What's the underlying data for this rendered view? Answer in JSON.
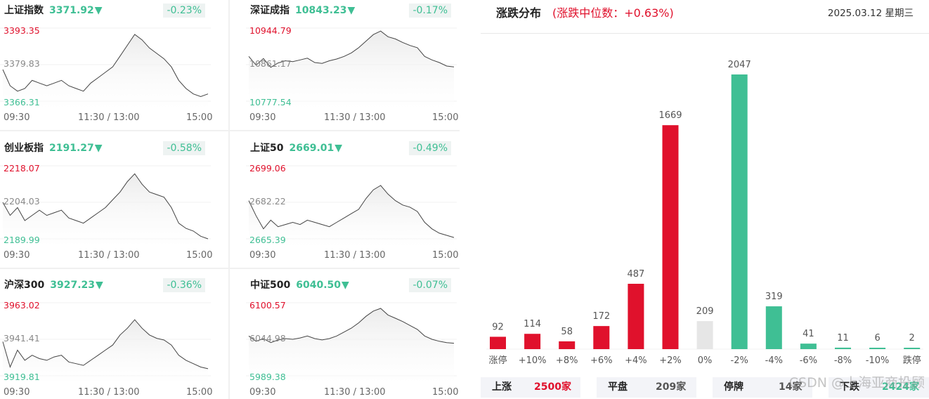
{
  "colors": {
    "up": "#e0112c",
    "down": "#3fbf94",
    "flat": "#e6e6e6",
    "ref": "#8a8a8a"
  },
  "indices": [
    {
      "name": "上证指数",
      "value": "3371.92",
      "arrow": "▼",
      "change": "-0.23%",
      "high": "3393.35",
      "mid": "3379.83",
      "low": "3366.31",
      "times": [
        "09:30",
        "11:30 / 13:00",
        "15:00"
      ],
      "series": [
        3378,
        3372,
        3370,
        3371,
        3374,
        3373,
        3372,
        3373,
        3374,
        3372,
        3371,
        3370,
        3373,
        3375,
        3377,
        3379,
        3383,
        3387,
        3391,
        3389,
        3386,
        3384,
        3382,
        3379,
        3374,
        3371,
        3369,
        3368,
        3369
      ]
    },
    {
      "name": "深证成指",
      "value": "10843.23",
      "arrow": "▼",
      "change": "-0.17%",
      "high": "10944.79",
      "mid": "10861.17",
      "low": "10777.54",
      "times": [
        "09:30",
        "11:30 / 13:00",
        "15:00"
      ],
      "series": [
        10880,
        10860,
        10875,
        10855,
        10865,
        10870,
        10868,
        10872,
        10876,
        10866,
        10864,
        10870,
        10874,
        10880,
        10888,
        10900,
        10915,
        10930,
        10938,
        10925,
        10920,
        10912,
        10905,
        10900,
        10880,
        10872,
        10866,
        10858,
        10856
      ]
    },
    {
      "name": "创业板指",
      "value": "2191.27",
      "arrow": "▼",
      "change": "-0.58%",
      "high": "2218.07",
      "mid": "2204.03",
      "low": "2189.99",
      "times": [
        "09:30",
        "11:30 / 13:00",
        "15:00"
      ],
      "series": [
        2204,
        2199,
        2202,
        2197,
        2199,
        2201,
        2199,
        2200,
        2201,
        2198,
        2197,
        2196,
        2198,
        2200,
        2202,
        2205,
        2208,
        2212,
        2215,
        2211,
        2208,
        2207,
        2206,
        2202,
        2196,
        2194,
        2193,
        2191,
        2190
      ]
    },
    {
      "name": "上证50",
      "value": "2669.01",
      "arrow": "▼",
      "change": "-0.49%",
      "high": "2699.06",
      "mid": "2682.22",
      "low": "2665.39",
      "times": [
        "09:30",
        "11:30 / 13:00",
        "15:00"
      ],
      "series": [
        2683,
        2676,
        2670,
        2674,
        2671,
        2672,
        2673,
        2672,
        2674,
        2673,
        2672,
        2671,
        2673,
        2675,
        2677,
        2679,
        2684,
        2688,
        2690,
        2686,
        2683,
        2681,
        2680,
        2678,
        2673,
        2670,
        2668,
        2667,
        2666
      ]
    },
    {
      "name": "沪深300",
      "value": "3927.23",
      "arrow": "▼",
      "change": "-0.36%",
      "high": "3963.02",
      "mid": "3941.41",
      "low": "3919.81",
      "times": [
        "09:30",
        "11:30 / 13:00",
        "15:00"
      ],
      "series": [
        3940,
        3925,
        3935,
        3929,
        3932,
        3930,
        3929,
        3931,
        3932,
        3928,
        3927,
        3926,
        3929,
        3932,
        3935,
        3938,
        3944,
        3948,
        3953,
        3948,
        3944,
        3942,
        3941,
        3938,
        3932,
        3929,
        3927,
        3925,
        3924
      ]
    },
    {
      "name": "中证500",
      "value": "6040.50",
      "arrow": "▼",
      "change": "-0.07%",
      "high": "6100.57",
      "mid": "6044.98",
      "low": "5989.38",
      "times": [
        "09:30",
        "11:30 / 13:00",
        "15:00"
      ],
      "series": [
        6050,
        6042,
        6046,
        6040,
        6044,
        6046,
        6045,
        6047,
        6050,
        6046,
        6044,
        6046,
        6050,
        6056,
        6062,
        6070,
        6080,
        6088,
        6092,
        6082,
        6077,
        6072,
        6066,
        6060,
        6050,
        6045,
        6042,
        6040,
        6039
      ]
    }
  ],
  "distribution": {
    "title": "涨跌分布",
    "subtitle": "(涨跌中位数：+0.63%)",
    "date": "2025.03.12 星期三",
    "stats": [
      {
        "label": "上涨",
        "value": "2500家"
      },
      {
        "label": "平盘",
        "value": "209家"
      },
      {
        "label": "停牌",
        "value": "14家"
      },
      {
        "label": "下跌",
        "value": "2424家"
      }
    ],
    "watermark": "CSDN @上海亚商投顾"
  },
  "chart_data": {
    "type": "bar",
    "categories": [
      "涨停",
      "+10%",
      "+8%",
      "+6%",
      "+4%",
      "+2%",
      "0%",
      "-2%",
      "-4%",
      "-6%",
      "-8%",
      "-10%",
      "跌停"
    ],
    "values": [
      92,
      114,
      58,
      172,
      487,
      1669,
      209,
      2047,
      319,
      41,
      11,
      6,
      2
    ],
    "directions": [
      "up",
      "up",
      "up",
      "up",
      "up",
      "up",
      "flat",
      "down",
      "down",
      "down",
      "down",
      "down",
      "down"
    ],
    "title": "涨跌分布",
    "ylim": [
      0,
      2047
    ]
  }
}
